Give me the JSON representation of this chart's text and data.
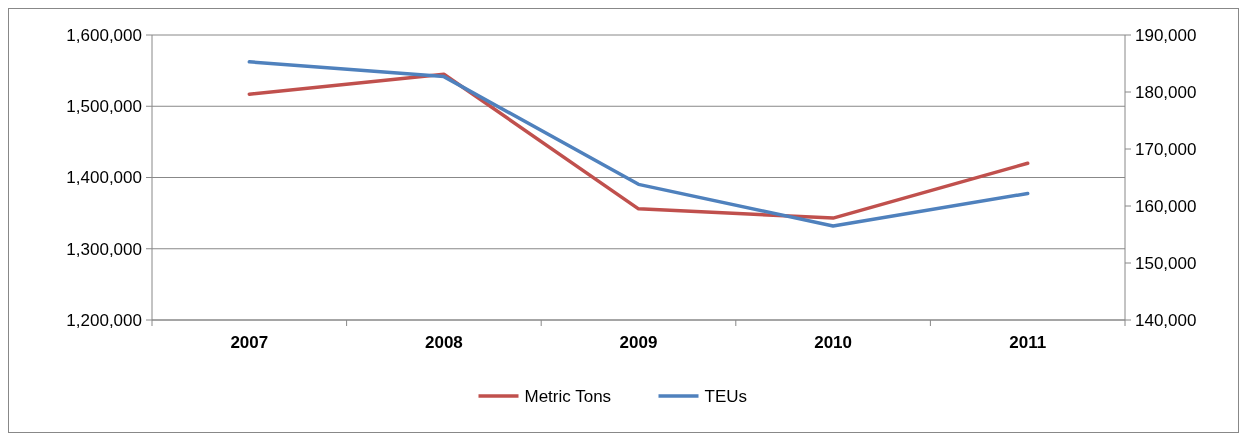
{
  "chart_data": {
    "type": "line",
    "categories": [
      "2007",
      "2008",
      "2009",
      "2010",
      "2011"
    ],
    "series": [
      {
        "name": "Metric Tons",
        "color": "#c0504d",
        "values": [
          1517000,
          1545000,
          1356000,
          1343000,
          1420000
        ]
      },
      {
        "name": "TEUs",
        "color": "#4f81bd",
        "axis": "y2",
        "values": [
          185300,
          182700,
          163800,
          156500,
          162200
        ]
      }
    ],
    "ylim": [
      1200000,
      1600000
    ],
    "yticks": [
      {
        "value": 1200000,
        "label": "1,200,000"
      },
      {
        "value": 1300000,
        "label": "1,300,000"
      },
      {
        "value": 1400000,
        "label": "1,400,000"
      },
      {
        "value": 1500000,
        "label": "1,500,000"
      },
      {
        "value": 1600000,
        "label": "1,600,000"
      }
    ],
    "y2lim": [
      140000,
      190000
    ],
    "y2ticks": [
      {
        "value": 140000,
        "label": "140,000"
      },
      {
        "value": 150000,
        "label": "150,000"
      },
      {
        "value": 160000,
        "label": "160,000"
      },
      {
        "value": 170000,
        "label": "170,000"
      },
      {
        "value": 180000,
        "label": "180,000"
      },
      {
        "value": 190000,
        "label": "190,000"
      }
    ],
    "grid": "y",
    "legend": "bottom",
    "marker": "none",
    "line_style": "solid"
  }
}
